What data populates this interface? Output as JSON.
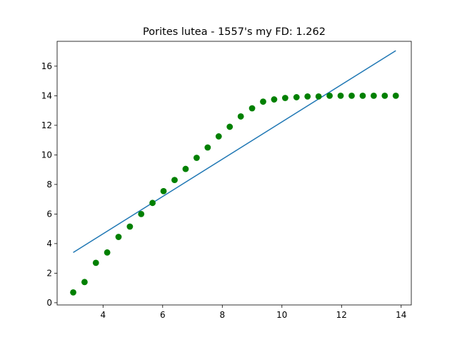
{
  "chart_data": {
    "type": "scatter",
    "title": "Porites lutea - 1557's my FD: 1.262",
    "xlabel": "",
    "ylabel": "",
    "xlim": [
      2.46,
      14.34
    ],
    "ylim": [
      -0.15,
      17.68
    ],
    "x_ticks": [
      4,
      6,
      8,
      10,
      12,
      14
    ],
    "y_ticks": [
      0,
      2,
      4,
      6,
      8,
      10,
      12,
      14,
      16
    ],
    "grid": false,
    "legend": "none",
    "colors": {
      "points": "#008000",
      "fit_line": "#1f77b4"
    },
    "series": [
      {
        "kind": "points",
        "x": [
          3.0,
          3.38,
          3.76,
          4.14,
          4.52,
          4.9,
          5.28,
          5.66,
          6.03,
          6.4,
          6.77,
          7.14,
          7.51,
          7.88,
          8.25,
          8.62,
          9.0,
          9.37,
          9.74,
          10.11,
          10.49,
          10.86,
          11.23,
          11.6,
          11.97,
          12.34,
          12.71,
          13.08,
          13.45,
          13.82
        ],
        "y": [
          0.7,
          1.4,
          2.7,
          3.4,
          4.45,
          5.15,
          6.0,
          6.75,
          7.55,
          8.3,
          9.05,
          9.8,
          10.5,
          11.25,
          11.9,
          12.6,
          13.15,
          13.6,
          13.75,
          13.85,
          13.9,
          13.95,
          13.95,
          14.0,
          14.0,
          14.0,
          14.0,
          14.0,
          14.0,
          14.0
        ]
      },
      {
        "kind": "fit-line",
        "x": [
          3.0,
          13.82
        ],
        "y": [
          3.4,
          17.05
        ]
      }
    ]
  }
}
